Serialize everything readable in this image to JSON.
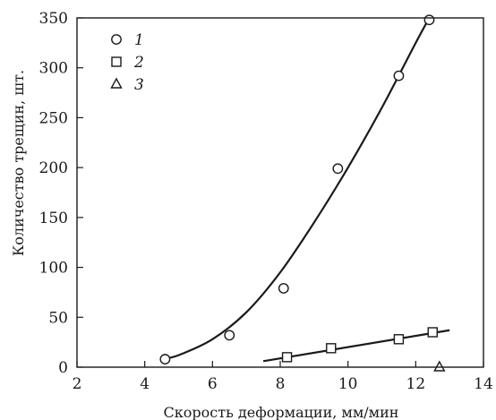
{
  "chart_data": {
    "type": "scatter",
    "title": "",
    "xlabel": "Скорость деформации, мм/мин",
    "ylabel": "Количество трещин, шт.",
    "xlim": [
      2,
      14
    ],
    "ylim": [
      0,
      350
    ],
    "xticks": [
      2,
      4,
      6,
      8,
      10,
      12,
      14
    ],
    "yticks": [
      0,
      50,
      100,
      150,
      200,
      250,
      300,
      350
    ],
    "grid": false,
    "legend_position": "top-left",
    "series": [
      {
        "name": "1",
        "marker": "circle",
        "points": [
          [
            4.6,
            8
          ],
          [
            6.5,
            32
          ],
          [
            8.1,
            79
          ],
          [
            9.7,
            199
          ],
          [
            11.5,
            292
          ],
          [
            12.4,
            348
          ]
        ],
        "fit_curve": [
          [
            4.5,
            8
          ],
          [
            5.0,
            12
          ],
          [
            6.0,
            28
          ],
          [
            7.0,
            55
          ],
          [
            8.0,
            95
          ],
          [
            9.0,
            145
          ],
          [
            10.0,
            200
          ],
          [
            11.0,
            260
          ],
          [
            12.0,
            325
          ],
          [
            12.4,
            350
          ]
        ]
      },
      {
        "name": "2",
        "marker": "square",
        "points": [
          [
            8.2,
            10
          ],
          [
            9.5,
            19
          ],
          [
            11.5,
            28
          ],
          [
            12.5,
            35
          ]
        ],
        "fit_curve": [
          [
            7.5,
            6
          ],
          [
            13.0,
            37
          ]
        ]
      },
      {
        "name": "3",
        "marker": "triangle",
        "points": [
          [
            12.7,
            0
          ]
        ],
        "fit_curve": []
      }
    ]
  }
}
